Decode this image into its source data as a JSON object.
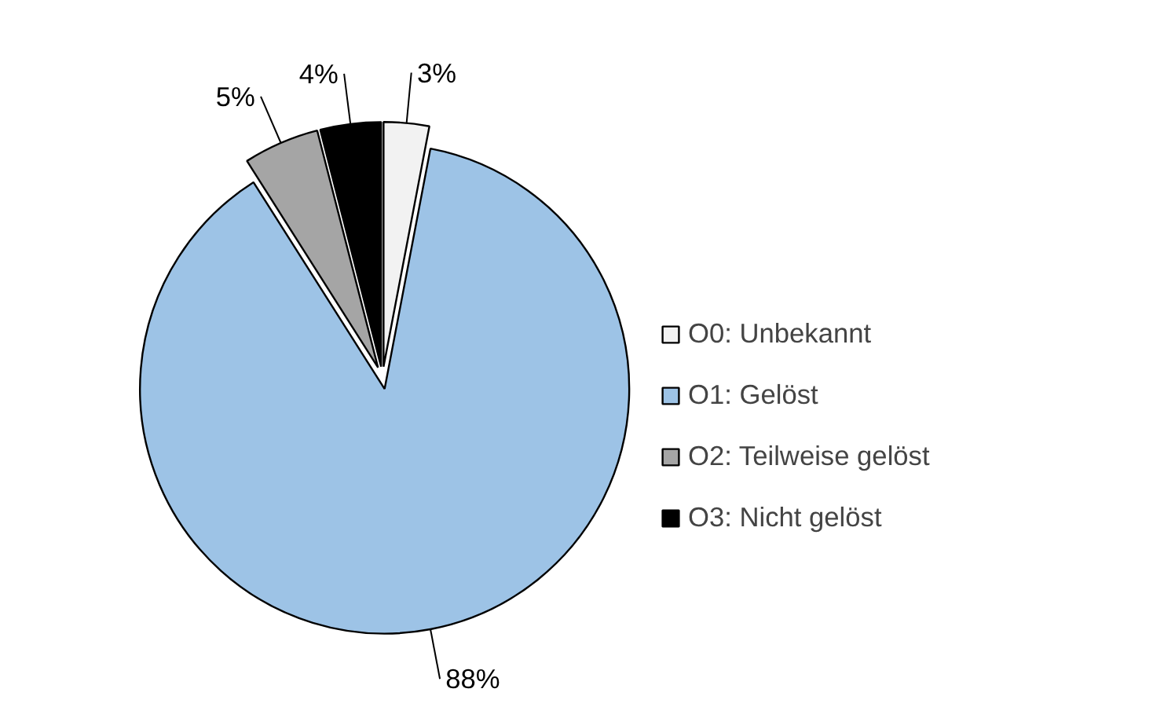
{
  "chart_data": {
    "type": "pie",
    "categories": [
      "O0: Unbekannt",
      "O1: Gelöst",
      "O2: Teilweise gelöst",
      "O3: Nicht gelöst"
    ],
    "values": [
      3,
      88,
      5,
      4
    ],
    "colors": [
      "#f2f2f2",
      "#9dc3e6",
      "#a5a5a5",
      "#000000"
    ],
    "value_labels": [
      "3%",
      "88%",
      "5%",
      "4%"
    ],
    "legend": "right"
  }
}
